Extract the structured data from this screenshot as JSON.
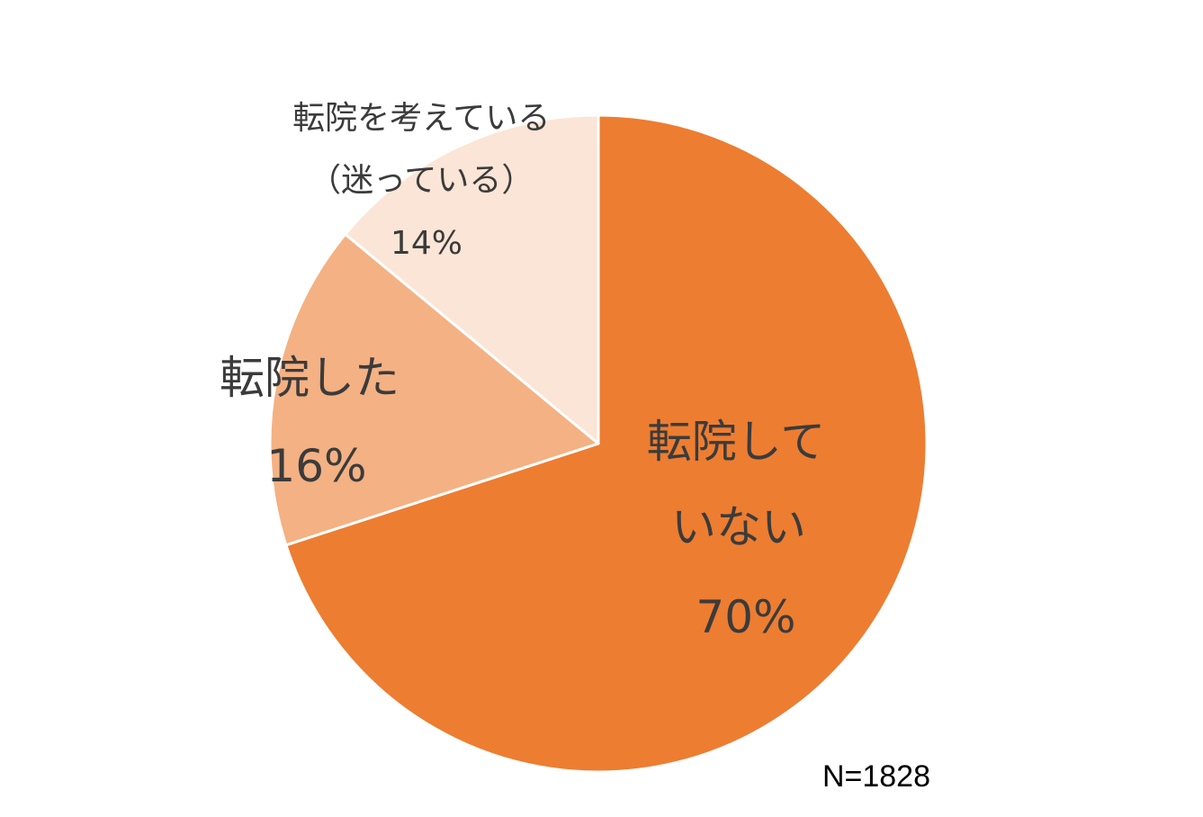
{
  "chart_data": {
    "type": "pie",
    "title": "",
    "start_angle_deg": 0,
    "direction": "clockwise",
    "slices": [
      {
        "label_lines": [
          "転院して",
          "いない"
        ],
        "value": 70,
        "value_label": "70%",
        "color": "#ED7D31"
      },
      {
        "label_lines": [
          "転院した"
        ],
        "value": 16,
        "value_label": "16%",
        "color": "#F4B183"
      },
      {
        "label_lines": [
          "転院を考えている",
          "（迷っている）"
        ],
        "value": 14,
        "value_label": "14%",
        "color": "#FBE5D6"
      }
    ],
    "legend": "none",
    "annotation": "N=1828"
  }
}
